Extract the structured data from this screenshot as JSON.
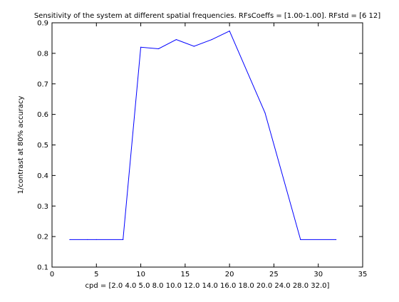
{
  "chart_data": {
    "type": "line",
    "title": "Sensitivity of the system at different spatial frequencies. RFsCoeffs = [1.00-1.00]. RFstd = [6  12]",
    "xlabel": "cpd = [2.0 4.0 5.0 8.0 10.0 12.0 14.0 16.0 18.0 20.0 24.0 28.0 32.0]",
    "ylabel": "1/contrast at 80% accuracy",
    "xlim": [
      0,
      35
    ],
    "ylim": [
      0.1,
      0.9
    ],
    "xticks": [
      "0",
      "5",
      "10",
      "15",
      "20",
      "25",
      "30",
      "35"
    ],
    "yticks": [
      "0.1",
      "0.2",
      "0.3",
      "0.4",
      "0.5",
      "0.6",
      "0.7",
      "0.8",
      "0.9"
    ],
    "grid": false,
    "series": [
      {
        "color": "#0000ff",
        "x": [
          2,
          4,
          5,
          8,
          10,
          12,
          14,
          16,
          18,
          20,
          24,
          28,
          32
        ],
        "y": [
          0.19,
          0.19,
          0.19,
          0.19,
          0.82,
          0.815,
          0.845,
          0.823,
          0.845,
          0.873,
          0.605,
          0.19,
          0.19
        ]
      }
    ]
  }
}
